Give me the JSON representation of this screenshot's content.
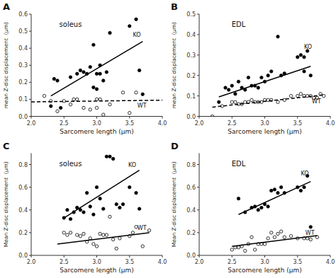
{
  "chart_data": [
    {
      "type": "scatter",
      "title": "soleus",
      "xlabel": "Sarcomere length (μm)",
      "ylabel": "mean Z-disc displacement  (μm)",
      "xlim": [
        2.0,
        4.0
      ],
      "xticks": [
        {
          "value": 2.0,
          "label": "2.0"
        },
        2.5,
        {
          "value": 3.0,
          "label": "3.0"
        },
        3.5,
        {
          "value": 4.0,
          "label": "4.0"
        }
      ],
      "ylim": [
        0,
        0.6
      ],
      "yticks": [
        {
          "value": 0,
          "label": "0.0"
        },
        0.1,
        0.2,
        0.3,
        0.4,
        0.5,
        0.6
      ],
      "grid": false,
      "series": [
        {
          "type": "scatter",
          "marker": "filled-circle",
          "color": "#000000",
          "x": [
            2.3,
            2.35,
            2.4,
            2.45,
            2.6,
            2.7,
            2.75,
            2.8,
            2.85,
            2.9,
            2.95,
            2.95,
            3.0,
            3.0,
            3.05,
            3.05,
            3.1,
            3.15,
            3.2,
            3.5,
            3.6,
            3.65,
            3.7
          ],
          "values": [
            0.06,
            0.22,
            0.21,
            0.05,
            0.23,
            0.25,
            0.27,
            0.26,
            0.25,
            0.29,
            0.42,
            0.17,
            0.25,
            0.16,
            0.25,
            0.3,
            0.21,
            0.26,
            0.49,
            0.53,
            0.57,
            0.27,
            0.13
          ]
        },
        {
          "type": "scatter",
          "marker": "open-circle",
          "color": "#000000",
          "x": [
            2.2,
            2.3,
            2.4,
            2.5,
            2.6,
            2.65,
            2.7,
            2.8,
            2.9,
            3.0,
            3.0,
            3.05,
            3.1,
            3.2,
            3.4,
            3.5,
            3.6
          ],
          "values": [
            0.12,
            0.09,
            0.03,
            0.09,
            0.07,
            0.1,
            0.1,
            0.05,
            0.04,
            0.1,
            0.05,
            0.1,
            0.01,
            0.07,
            0.14,
            0.02,
            0.14
          ]
        },
        {
          "type": "line",
          "line_style": "solid",
          "color": "#000000",
          "x": [
            2.3,
            3.7
          ],
          "values": [
            0.12,
            0.44
          ]
        },
        {
          "type": "line",
          "line_style": "dashed",
          "color": "#000000",
          "x": [
            2.0,
            4.0
          ],
          "values": [
            0.085,
            0.095
          ]
        }
      ],
      "annotations": [
        {
          "text": "A"
        },
        {
          "text": "KO",
          "x": 3.55,
          "y": 0.48
        },
        {
          "text": "WT",
          "x": 3.62,
          "y": 0.065
        }
      ]
    },
    {
      "type": "scatter",
      "title": "EDL",
      "xlabel": "Sarcomere length (μm)",
      "ylabel": "mean Z-disc displacement  (μm)",
      "xlim": [
        2.0,
        4.0
      ],
      "xticks": [
        {
          "value": 2.0,
          "label": "2.0"
        },
        2.5,
        {
          "value": 3.0,
          "label": "3.0"
        },
        3.5,
        {
          "value": 4.0,
          "label": "4.0"
        }
      ],
      "ylim": [
        0,
        0.5
      ],
      "yticks": [
        {
          "value": 0,
          "label": "0.0"
        },
        0.1,
        0.2,
        0.3,
        0.4,
        0.5
      ],
      "grid": false,
      "series": [
        {
          "type": "scatter",
          "marker": "filled-circle",
          "color": "#000000",
          "x": [
            2.3,
            2.4,
            2.45,
            2.5,
            2.55,
            2.6,
            2.65,
            2.7,
            2.75,
            2.8,
            2.85,
            2.9,
            2.95,
            3.0,
            3.05,
            3.1,
            3.2,
            3.25,
            3.3,
            3.5,
            3.55,
            3.6,
            3.6,
            3.65,
            3.7
          ],
          "values": [
            0.07,
            0.14,
            0.13,
            0.15,
            0.11,
            0.17,
            0.14,
            0.13,
            0.19,
            0.15,
            0.15,
            0.14,
            0.19,
            0.17,
            0.2,
            0.22,
            0.39,
            0.2,
            0.21,
            0.29,
            0.3,
            0.29,
            0.22,
            0.32,
            0.2
          ]
        },
        {
          "type": "scatter",
          "marker": "open-circle",
          "color": "#000000",
          "x": [
            2.2,
            2.35,
            2.5,
            2.55,
            2.6,
            2.65,
            2.7,
            2.75,
            2.8,
            2.85,
            2.9,
            2.95,
            3.0,
            3.05,
            3.1,
            3.2,
            3.3,
            3.4,
            3.5,
            3.55,
            3.6,
            3.65,
            3.7,
            3.75,
            3.8,
            3.85,
            3.9
          ],
          "values": [
            0.0,
            0.05,
            0.07,
            0.07,
            0.06,
            0.06,
            0.07,
            0.07,
            0.08,
            0.07,
            0.07,
            0.07,
            0.08,
            0.08,
            0.08,
            0.07,
            0.08,
            0.1,
            0.1,
            0.11,
            0.1,
            0.1,
            0.1,
            0.09,
            0.09,
            0.11,
            0.1
          ]
        },
        {
          "type": "line",
          "line_style": "solid",
          "color": "#000000",
          "x": [
            2.3,
            3.7
          ],
          "values": [
            0.095,
            0.245
          ]
        },
        {
          "type": "line",
          "line_style": "dashed",
          "color": "#000000",
          "x": [
            2.2,
            3.9
          ],
          "values": [
            0.045,
            0.105
          ]
        }
      ],
      "annotations": [
        {
          "text": "B"
        },
        {
          "text": "KO",
          "x": 3.6,
          "y": 0.34
        },
        {
          "text": "WT",
          "x": 3.72,
          "y": 0.075
        }
      ]
    },
    {
      "type": "scatter",
      "title": "soleus",
      "xlabel": "Sarcomere length (μm)",
      "ylabel": "Mean Z-disc displacement  (μm)",
      "xlim": [
        2.0,
        4.0
      ],
      "xticks": [
        {
          "value": 2.0,
          "label": "2.0"
        },
        2.5,
        {
          "value": 3.0,
          "label": "3.0"
        },
        3.5,
        {
          "value": 4.0,
          "label": "4.0"
        }
      ],
      "ylim": [
        0,
        0.9
      ],
      "yticks": [
        {
          "value": 0,
          "label": "0.0"
        },
        0.2,
        0.4,
        0.6,
        0.8
      ],
      "grid": false,
      "series": [
        {
          "type": "scatter",
          "marker": "filled-circle",
          "color": "#000000",
          "x": [
            2.5,
            2.55,
            2.6,
            2.65,
            2.7,
            2.75,
            2.8,
            2.85,
            2.9,
            2.95,
            3.0,
            3.05,
            3.1,
            3.15,
            3.2,
            3.25,
            3.3,
            3.35,
            3.4,
            3.5,
            3.6,
            3.65
          ],
          "values": [
            0.33,
            0.4,
            0.32,
            0.38,
            0.42,
            0.4,
            0.38,
            0.55,
            0.43,
            0.36,
            0.6,
            0.5,
            0.41,
            0.87,
            0.87,
            0.85,
            0.45,
            0.42,
            0.45,
            0.6,
            0.55,
            0.41
          ]
        },
        {
          "type": "scatter",
          "marker": "open-circle",
          "color": "#000000",
          "x": [
            2.5,
            2.55,
            2.6,
            2.7,
            2.75,
            2.8,
            2.85,
            2.9,
            2.95,
            3.0,
            3.05,
            3.1,
            3.15,
            3.2,
            3.25,
            3.3,
            3.35,
            3.5,
            3.55,
            3.6,
            3.7,
            3.8
          ],
          "values": [
            0.2,
            0.18,
            0.2,
            0.18,
            0.17,
            0.19,
            0.12,
            0.15,
            0.1,
            0.08,
            0.19,
            0.18,
            0.18,
            0.34,
            0.14,
            0.06,
            0.15,
            0.17,
            0.2,
            0.25,
            0.08,
            0.22
          ]
        },
        {
          "type": "line",
          "line_style": "solid",
          "color": "#000000",
          "x": [
            2.5,
            3.65
          ],
          "values": [
            0.33,
            0.75
          ]
        },
        {
          "type": "line",
          "line_style": "solid",
          "color": "#000000",
          "x": [
            2.4,
            3.8
          ],
          "values": [
            0.1,
            0.2
          ]
        }
      ],
      "annotations": [
        {
          "text": "C"
        },
        {
          "text": "KO",
          "x": 3.48,
          "y": 0.8
        },
        {
          "text": "WT",
          "x": 3.62,
          "y": 0.24
        }
      ]
    },
    {
      "type": "scatter",
      "title": "EDL",
      "xlabel": "Sarcomere length (μm)",
      "ylabel": "Mean Z-disc displacement  (μm)",
      "xlim": [
        2.0,
        4.0
      ],
      "xticks": [
        {
          "value": 2.0,
          "label": "2.0"
        },
        2.5,
        {
          "value": 3.0,
          "label": "3.0"
        },
        3.5,
        {
          "value": 4.0,
          "label": "4.0"
        }
      ],
      "ylim": [
        0,
        0.9
      ],
      "yticks": [
        {
          "value": 0,
          "label": "0.0"
        },
        0.2,
        0.4,
        0.6,
        0.8
      ],
      "grid": false,
      "series": [
        {
          "type": "scatter",
          "marker": "filled-circle",
          "color": "#000000",
          "x": [
            2.6,
            2.7,
            2.8,
            2.85,
            2.9,
            2.95,
            3.0,
            3.05,
            3.1,
            3.15,
            3.2,
            3.25,
            3.3,
            3.5,
            3.55,
            3.6,
            3.65,
            3.7
          ],
          "values": [
            0.5,
            0.38,
            0.42,
            0.43,
            0.4,
            0.42,
            0.45,
            0.43,
            0.57,
            0.58,
            0.55,
            0.6,
            0.55,
            0.6,
            0.57,
            0.6,
            0.7,
            0.25
          ]
        },
        {
          "type": "scatter",
          "marker": "open-circle",
          "color": "#000000",
          "x": [
            2.5,
            2.55,
            2.6,
            2.65,
            2.7,
            2.75,
            2.8,
            2.85,
            2.9,
            2.95,
            3.0,
            3.05,
            3.1,
            3.15,
            3.2,
            3.25,
            3.3,
            3.4,
            3.5,
            3.6,
            3.65,
            3.7,
            3.8
          ],
          "values": [
            0.05,
            0.07,
            0.07,
            0.08,
            0.04,
            0.1,
            0.16,
            0.05,
            0.1,
            0.1,
            0.1,
            0.15,
            0.2,
            0.16,
            0.19,
            0.21,
            0.16,
            0.17,
            0.15,
            0.15,
            0.15,
            0.14,
            0.16
          ]
        },
        {
          "type": "line",
          "line_style": "solid",
          "color": "#000000",
          "x": [
            2.6,
            3.7
          ],
          "values": [
            0.36,
            0.65
          ]
        },
        {
          "type": "line",
          "line_style": "solid",
          "color": "#000000",
          "x": [
            2.5,
            3.8
          ],
          "values": [
            0.08,
            0.175
          ]
        }
      ],
      "annotations": [
        {
          "text": "D"
        },
        {
          "text": "KO",
          "x": 3.55,
          "y": 0.72
        },
        {
          "text": "WT",
          "x": 3.62,
          "y": 0.2
        }
      ]
    }
  ]
}
